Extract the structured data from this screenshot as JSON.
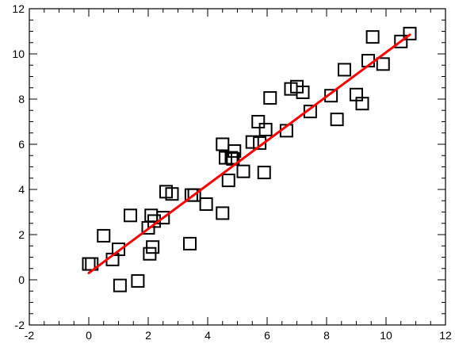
{
  "chart_data": {
    "type": "scatter",
    "title": "",
    "xlabel": "",
    "ylabel": "",
    "xlim": [
      -2,
      12
    ],
    "ylim": [
      -2,
      12
    ],
    "grid": false,
    "x_ticks": [
      "-2",
      "0",
      "2",
      "4",
      "6",
      "8",
      "10",
      "12"
    ],
    "y_ticks": [
      "-2",
      "0",
      "2",
      "4",
      "6",
      "8",
      "10",
      "12"
    ],
    "marker": "open-square",
    "marker_color": "#000000",
    "fit_line_color": "#ff0000",
    "series": [
      {
        "points": [
          [
            0.0,
            0.7
          ],
          [
            0.1,
            0.7
          ],
          [
            0.5,
            1.95
          ],
          [
            0.8,
            0.9
          ],
          [
            1.0,
            1.35
          ],
          [
            1.05,
            -0.25
          ],
          [
            1.4,
            2.85
          ],
          [
            1.65,
            -0.05
          ],
          [
            2.0,
            2.3
          ],
          [
            2.05,
            1.15
          ],
          [
            2.1,
            2.85
          ],
          [
            2.15,
            1.45
          ],
          [
            2.2,
            2.6
          ],
          [
            2.5,
            2.75
          ],
          [
            2.6,
            3.9
          ],
          [
            2.8,
            3.8
          ],
          [
            3.4,
            1.6
          ],
          [
            3.45,
            3.75
          ],
          [
            3.55,
            3.75
          ],
          [
            3.95,
            3.35
          ],
          [
            4.5,
            2.95
          ],
          [
            4.5,
            6.0
          ],
          [
            4.6,
            5.4
          ],
          [
            4.7,
            4.4
          ],
          [
            4.8,
            5.4
          ],
          [
            4.85,
            5.35
          ],
          [
            4.9,
            5.7
          ],
          [
            5.2,
            4.8
          ],
          [
            5.5,
            6.1
          ],
          [
            5.7,
            7.0
          ],
          [
            5.75,
            6.05
          ],
          [
            5.9,
            4.75
          ],
          [
            5.95,
            6.65
          ],
          [
            6.1,
            8.05
          ],
          [
            6.65,
            6.6
          ],
          [
            6.8,
            8.45
          ],
          [
            7.0,
            8.55
          ],
          [
            7.2,
            8.3
          ],
          [
            7.45,
            7.45
          ],
          [
            8.15,
            8.15
          ],
          [
            8.35,
            7.1
          ],
          [
            8.6,
            9.3
          ],
          [
            9.0,
            8.2
          ],
          [
            9.2,
            7.8
          ],
          [
            9.4,
            9.7
          ],
          [
            9.55,
            10.75
          ],
          [
            9.9,
            9.55
          ],
          [
            10.5,
            10.55
          ],
          [
            10.8,
            10.9
          ]
        ]
      }
    ],
    "fit_line": {
      "x": [
        0.0,
        10.8
      ],
      "y": [
        0.3,
        10.85
      ]
    }
  }
}
